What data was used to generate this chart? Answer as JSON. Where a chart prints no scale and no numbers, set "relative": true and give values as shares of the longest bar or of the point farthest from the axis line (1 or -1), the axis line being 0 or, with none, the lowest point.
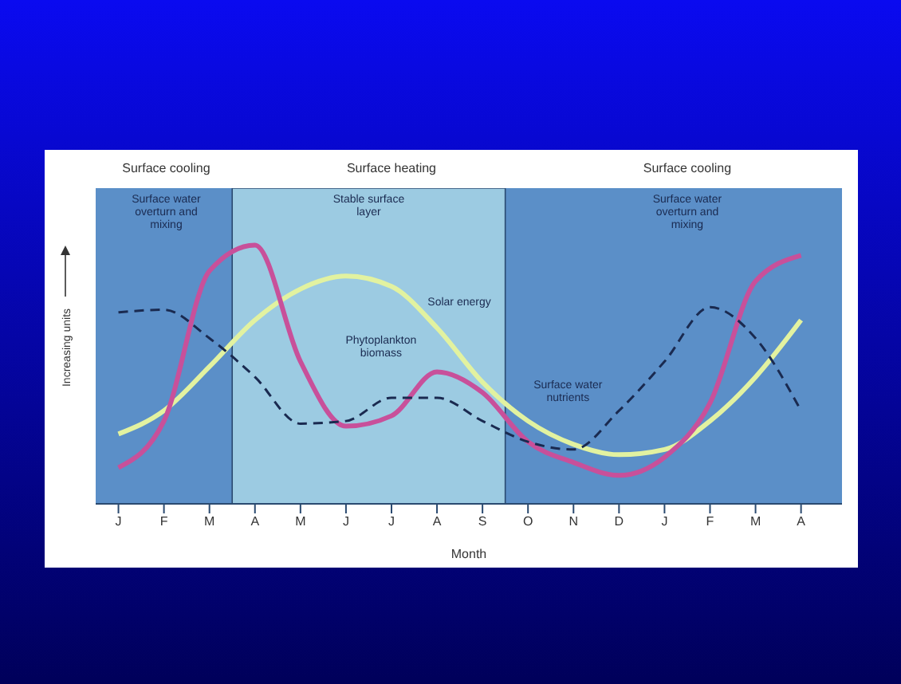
{
  "chart_data": {
    "type": "line",
    "relative": true,
    "xlabel": "Month",
    "ylabel": "Increasing units",
    "categories": [
      "J",
      "F",
      "M",
      "A",
      "M",
      "J",
      "J",
      "A",
      "S",
      "O",
      "N",
      "D",
      "J",
      "F",
      "M",
      "A"
    ],
    "series": [
      {
        "name": "Solar energy",
        "color": "#e2f2a0",
        "line_style": "solid",
        "values": [
          0.27,
          0.36,
          0.53,
          0.71,
          0.83,
          0.88,
          0.84,
          0.68,
          0.47,
          0.32,
          0.23,
          0.19,
          0.21,
          0.32,
          0.49,
          0.71
        ]
      },
      {
        "name": "Phytoplankton biomass",
        "color": "#c8509a",
        "line_style": "solid",
        "values": [
          0.14,
          0.32,
          0.9,
          1.0,
          0.55,
          0.3,
          0.34,
          0.51,
          0.43,
          0.24,
          0.16,
          0.11,
          0.18,
          0.39,
          0.86,
          0.96
        ]
      },
      {
        "name": "Surface water nutrients",
        "color": "#1a2a50",
        "line_style": "dashed",
        "values": [
          0.74,
          0.75,
          0.64,
          0.49,
          0.31,
          0.32,
          0.41,
          0.41,
          0.32,
          0.24,
          0.21,
          0.36,
          0.55,
          0.76,
          0.64,
          0.36
        ]
      }
    ],
    "bands": [
      {
        "axis": "x",
        "from": "A",
        "to": "S",
        "label": "Stable surface layer",
        "color": "#9ccbe2"
      }
    ],
    "annotations": [
      "Surface cooling",
      "Surface heating",
      "Surface cooling",
      "Surface water overturn and mixing",
      "Surface water overturn and mixing"
    ],
    "marker": "none"
  }
}
